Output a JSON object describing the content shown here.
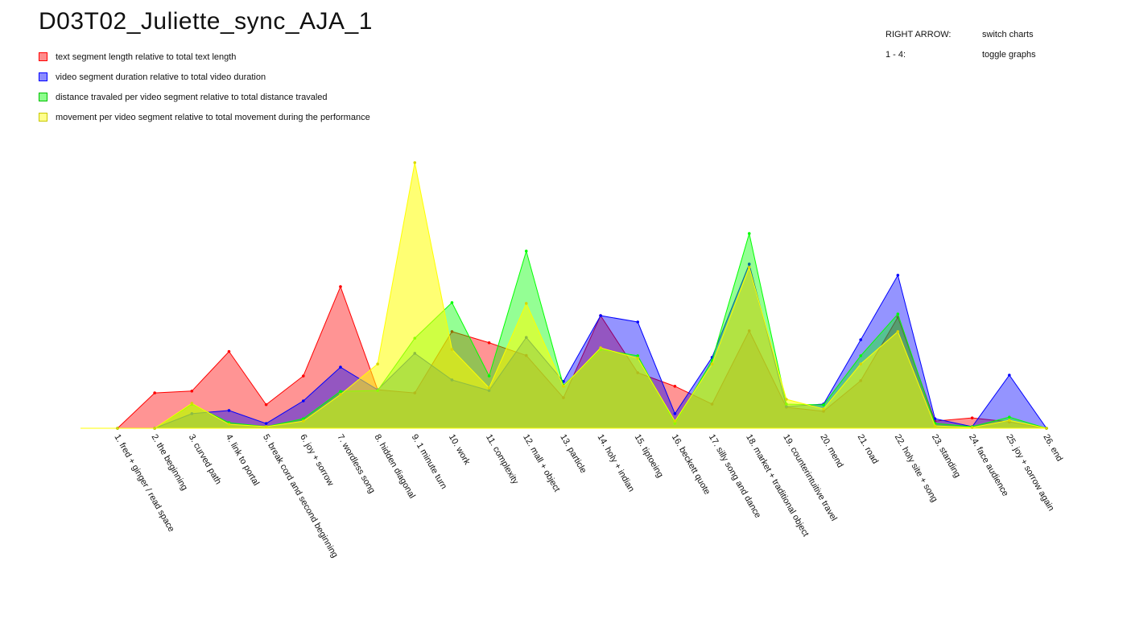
{
  "title": "D03T02_Juliette_sync_AJA_1",
  "help": [
    {
      "key": "RIGHT ARROW:",
      "action": "switch charts"
    },
    {
      "key": "1 - 4:",
      "action": "toggle graphs"
    }
  ],
  "colors": {
    "text": "#ff0000",
    "video": "#0000ff",
    "distance": "#00ff00",
    "movement": "#ffff00"
  },
  "chart_data": {
    "type": "area",
    "x": [
      "1. fred + ginger  /  read space",
      "2. the beginning",
      "3. curved path",
      "4. link to portal",
      "5. break cord and second beginning",
      "6. joy + sorrow",
      "7. wordless song",
      "8. hidden diagonal",
      "9. 1 minute turn",
      "10. work",
      "11. complexity",
      "12. mall + object",
      "13. particle",
      "14. holy + indian",
      "15. tiptoeing",
      "16. beckett quote",
      "17. silly song and dance",
      "18. market + traditional object",
      "19. counterintuitive travel",
      "20. mend",
      "21. road",
      "22. holy site + song",
      "23. standing",
      "24. face audience",
      "25. joy + sorrow again",
      "26. end"
    ],
    "series": [
      {
        "name": "text segment length relative to total text length",
        "color": "#ff0000",
        "values": [
          0.0,
          13.3,
          14.0,
          28.9,
          8.9,
          19.7,
          53.3,
          14.5,
          13.3,
          36.4,
          32.2,
          27.4,
          11.5,
          42.4,
          20.9,
          15.8,
          9.1,
          36.7,
          7.9,
          6.4,
          17.9,
          41.8,
          2.7,
          3.9,
          2.4,
          0.0
        ]
      },
      {
        "name": "video segment duration relative to total video duration",
        "color": "#0000ff",
        "values": [
          0.0,
          0.0,
          5.5,
          6.7,
          1.8,
          10.3,
          23.0,
          14.5,
          28.2,
          18.2,
          14.2,
          34.2,
          17.6,
          42.4,
          40.0,
          5.5,
          26.7,
          61.8,
          8.2,
          9.1,
          33.3,
          57.6,
          3.6,
          0.6,
          20.0,
          0.0
        ]
      },
      {
        "name": "distance travaled per video segment relative to total distance travaled",
        "color": "#00ff00",
        "values": [
          0.0,
          0.0,
          9.1,
          2.1,
          0.6,
          3.6,
          13.9,
          14.2,
          33.9,
          47.3,
          19.7,
          66.7,
          16.1,
          29.7,
          27.3,
          1.8,
          25.5,
          73.3,
          9.1,
          8.8,
          27.3,
          43.0,
          1.8,
          0.6,
          4.2,
          0.0
        ]
      },
      {
        "name": "movement per video segment relative to total movement during the performance",
        "color": "#ffff00",
        "values": [
          0.0,
          0.0,
          9.4,
          1.5,
          0.6,
          2.7,
          12.7,
          24.2,
          100.0,
          29.7,
          15.2,
          47.0,
          15.8,
          30.3,
          26.4,
          2.7,
          24.2,
          60.6,
          10.9,
          7.3,
          24.2,
          36.4,
          0.9,
          0.3,
          3.0,
          0.0
        ]
      }
    ],
    "ylim": [
      0,
      100
    ]
  }
}
